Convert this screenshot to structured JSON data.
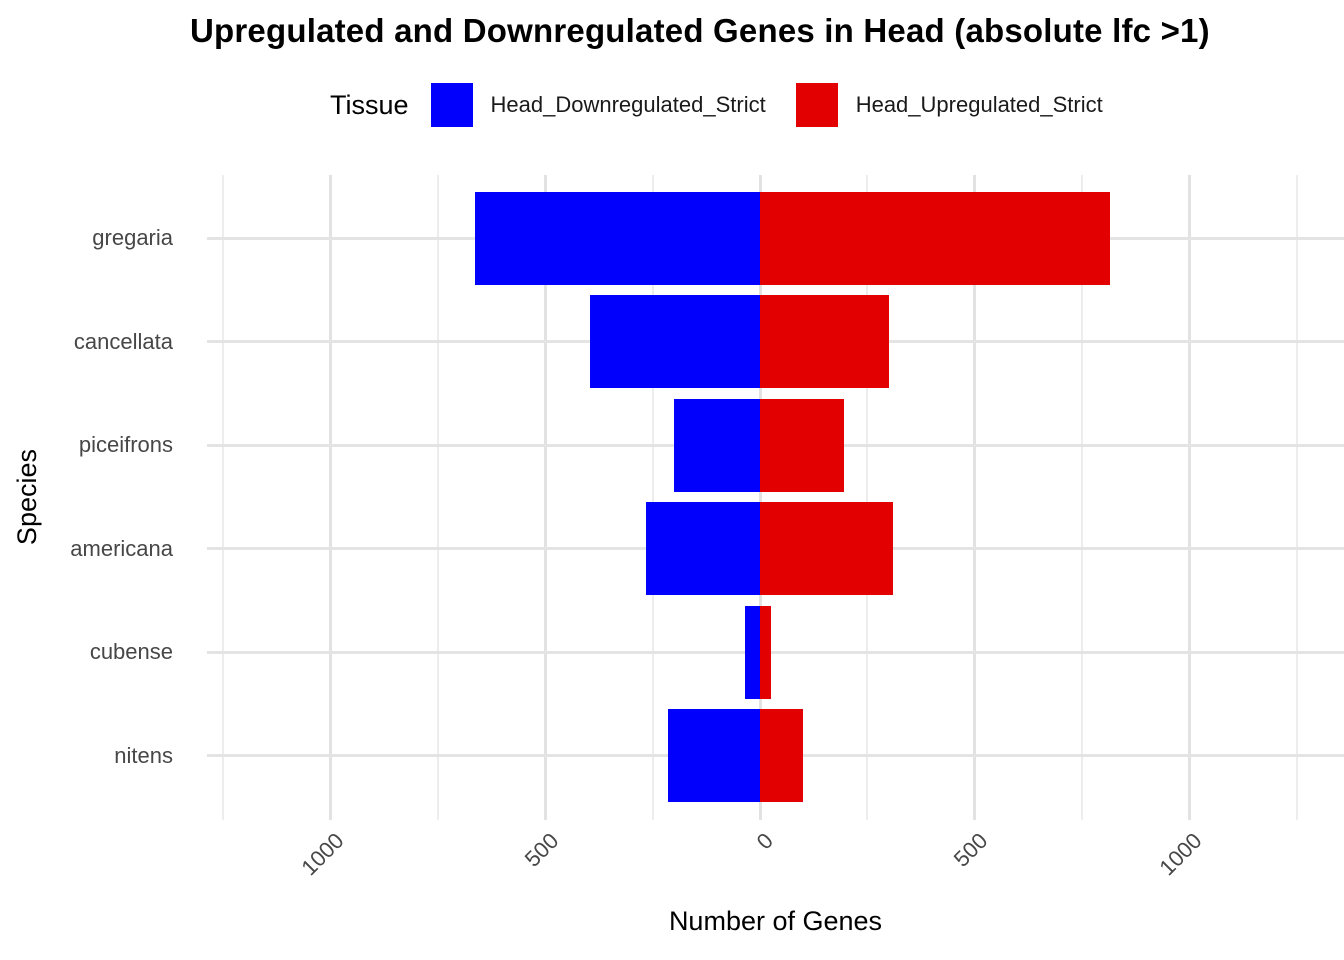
{
  "chart_data": {
    "type": "bar",
    "variant": "diverging-horizontal",
    "title": "Upregulated and Downregulated Genes in Head (absolute lfc >1)",
    "xlabel": "Number of Genes",
    "ylabel": "Species",
    "legend_title": "Tissue",
    "legend_position": "top",
    "categories": [
      "gregaria",
      "cancellata",
      "piceifrons",
      "americana",
      "cubense",
      "nitens"
    ],
    "series": [
      {
        "name": "Head_Downregulated_Strict",
        "color": "#0000FC",
        "direction": -1,
        "values": [
          665,
          395,
          200,
          265,
          35,
          215
        ]
      },
      {
        "name": "Head_Upregulated_Strict",
        "color": "#E30000",
        "direction": 1,
        "values": [
          815,
          300,
          195,
          310,
          25,
          100
        ]
      }
    ],
    "x_ticks": [
      -1000,
      -500,
      0,
      500,
      1000
    ],
    "x_tick_labels": [
      "1000",
      "500",
      "0",
      "500",
      "1000"
    ],
    "x_minor_ticks": [
      -1250,
      -750,
      -250,
      250,
      750,
      1250
    ],
    "xlim": [
      -1288,
      1360
    ],
    "grid": "vertical major+minor, horizontal major per category",
    "colors": {
      "background": "#FFFFFF",
      "major_grid": "#E2E2E2",
      "minor_grid": "#EDEDED",
      "tick_label": "#474747",
      "title": "#000000"
    }
  }
}
